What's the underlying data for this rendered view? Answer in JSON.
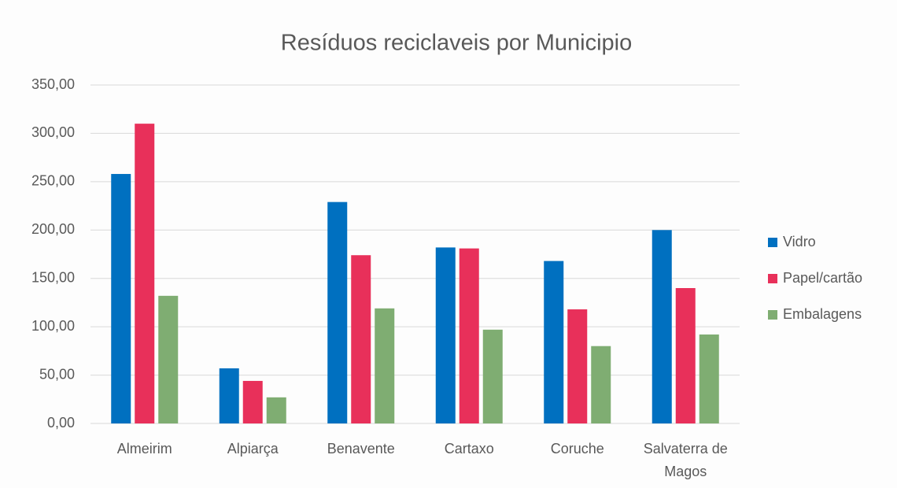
{
  "chart_data": {
    "type": "bar",
    "title": "Resíduos reciclaveis por  Municipio",
    "categories": [
      "Almeirim",
      "Alpiarça",
      "Benavente",
      "Cartaxo",
      "Coruche",
      "Salvaterra de Magos"
    ],
    "series": [
      {
        "name": "Vidro",
        "color": "#0070c0",
        "values": [
          258,
          57,
          229,
          182,
          168,
          200
        ]
      },
      {
        "name": "Papel/cartão",
        "color": "#e8305a",
        "values": [
          310,
          44,
          174,
          181,
          118,
          140
        ]
      },
      {
        "name": "Embalagens",
        "color": "#7fad72",
        "values": [
          132,
          27,
          119,
          97,
          80,
          92
        ]
      }
    ],
    "ylim": [
      0,
      350
    ],
    "yticks": [
      {
        "value": 0,
        "label": "0,00"
      },
      {
        "value": 50,
        "label": "50,00"
      },
      {
        "value": 100,
        "label": "100,00"
      },
      {
        "value": 150,
        "label": "150,00"
      },
      {
        "value": 200,
        "label": "200,00"
      },
      {
        "value": 250,
        "label": "250,00"
      },
      {
        "value": 300,
        "label": "300,00"
      },
      {
        "value": 350,
        "label": "350,00"
      }
    ],
    "grid": true,
    "legend": "right"
  }
}
